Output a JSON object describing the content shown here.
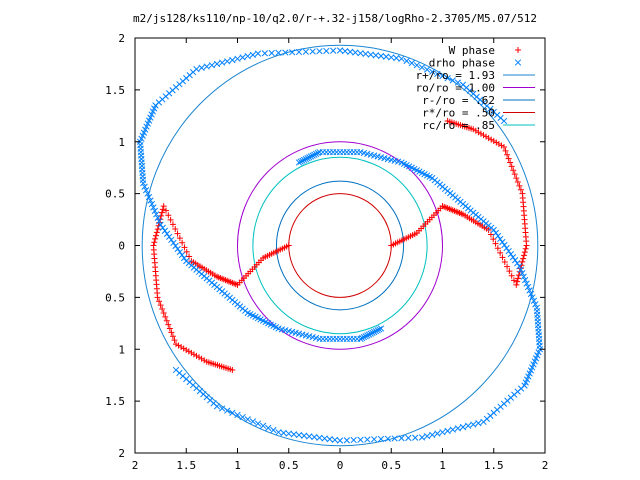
{
  "chart_data": {
    "type": "scatter",
    "title": "m2/js128/ks110/np-10/q2.0/r-+.32-j158/logRho-2.3705/M5.07/512",
    "xlabel": "",
    "ylabel": "",
    "xlim": [
      -2,
      2
    ],
    "ylim": [
      -2,
      2
    ],
    "x_tick_labels": [
      "2",
      "1.5",
      "1",
      "0.5",
      "0",
      "0.5",
      "1",
      "1.5",
      "2"
    ],
    "y_tick_labels": [
      "2",
      "1.5",
      "1",
      "0.5",
      "0",
      "0.5",
      "1",
      "1.5",
      "2"
    ],
    "grid": false,
    "legend_position": "top-right",
    "series": [
      {
        "name": "W phase",
        "marker": "+",
        "color": "#ff0000",
        "arms": [
          {
            "phase": 0,
            "x": [
              -0.5,
              -0.75,
              -1.0,
              -1.2,
              -1.45,
              -1.72,
              -1.82,
              -1.78,
              -1.6,
              -1.3,
              -1.05
            ],
            "y": [
              0.0,
              -0.12,
              -0.38,
              -0.3,
              -0.15,
              0.38,
              0.0,
              -0.5,
              -0.95,
              -1.12,
              -1.2
            ]
          },
          {
            "phase": 1,
            "x": [
              0.5,
              0.75,
              1.0,
              1.2,
              1.45,
              1.72,
              1.82,
              1.78,
              1.6,
              1.3,
              1.05
            ],
            "y": [
              0.0,
              0.12,
              0.38,
              0.3,
              0.15,
              -0.38,
              0.0,
              0.5,
              0.95,
              1.12,
              1.2
            ]
          }
        ]
      },
      {
        "name": "drho phase",
        "marker": "x",
        "color": "#0080ff",
        "arms": [
          {
            "phase": 0,
            "x": [
              -0.4,
              -0.2,
              0.2,
              0.6,
              0.9,
              1.2,
              1.5,
              1.75,
              1.92,
              1.95,
              1.8,
              1.4,
              0.8,
              0.0,
              -0.6,
              -1.2,
              -1.6
            ],
            "y": [
              0.8,
              0.9,
              0.9,
              0.8,
              0.65,
              0.4,
              0.15,
              -0.2,
              -0.6,
              -1.0,
              -1.35,
              -1.7,
              -1.85,
              -1.88,
              -1.8,
              -1.55,
              -1.2
            ]
          },
          {
            "phase": 1,
            "x": [
              0.4,
              0.2,
              -0.2,
              -0.6,
              -0.9,
              -1.2,
              -1.5,
              -1.75,
              -1.92,
              -1.95,
              -1.8,
              -1.4,
              -0.8,
              0.0,
              0.6,
              1.2,
              1.6
            ],
            "y": [
              -0.8,
              -0.9,
              -0.9,
              -0.8,
              -0.65,
              -0.4,
              -0.15,
              0.2,
              0.6,
              1.0,
              1.35,
              1.7,
              1.85,
              1.88,
              1.8,
              1.55,
              1.2
            ]
          }
        ]
      }
    ],
    "circles": [
      {
        "name": "r+/ro = 1.93",
        "r": 1.93,
        "color": "#1a85d1"
      },
      {
        "name": "ro/ro = 1.00",
        "r": 1.0,
        "color": "#a000d0"
      },
      {
        "name": "r-/ro = .62",
        "r": 0.62,
        "color": "#0070c0"
      },
      {
        "name": "r*/ro = .50",
        "r": 0.5,
        "color": "#d00000"
      },
      {
        "name": "rc/ro = .85",
        "r": 0.85,
        "color": "#00c0c0"
      }
    ]
  }
}
